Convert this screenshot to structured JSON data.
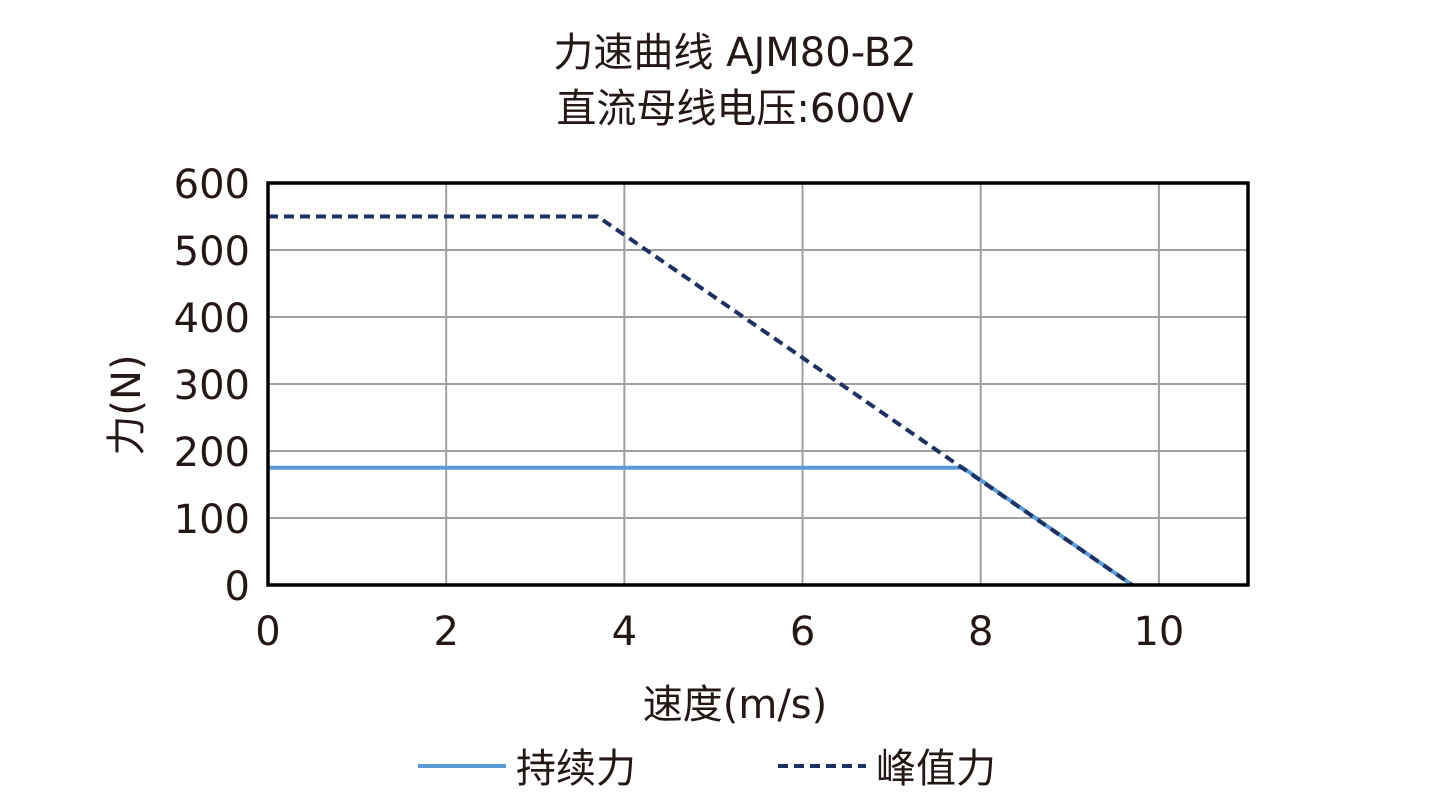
{
  "chart_data": {
    "type": "line",
    "title": "力速曲线 AJM80-B2",
    "subtitle": "直流母线电压:600V",
    "xlabel": "速度(m/s)",
    "ylabel": "力(N)",
    "xlim": [
      0,
      11
    ],
    "ylim": [
      0,
      600
    ],
    "xticks": [
      0,
      2,
      4,
      6,
      8,
      10
    ],
    "yticks": [
      0,
      100,
      200,
      300,
      400,
      500,
      600
    ],
    "grid": true,
    "legend_position": "bottom",
    "series": [
      {
        "name": "持续力",
        "color": "#5b9bd5",
        "style": "solid",
        "x": [
          0,
          7.8,
          9.7
        ],
        "y": [
          175,
          175,
          0
        ]
      },
      {
        "name": "峰值力",
        "color": "#1f3160",
        "style": "dashed",
        "x": [
          0,
          3.7,
          9.7
        ],
        "y": [
          550,
          550,
          0
        ]
      }
    ]
  }
}
